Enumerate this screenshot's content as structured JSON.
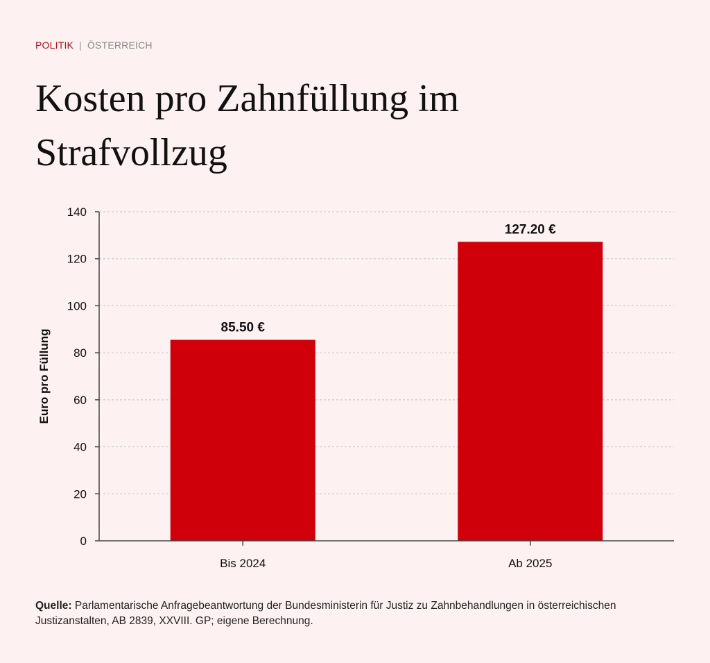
{
  "header": {
    "category": "POLITIK",
    "separator": "|",
    "subcategory": "ÖSTERREICH"
  },
  "title": "Kosten pro Zahnfüllung im Strafvollzug",
  "chart_data": {
    "type": "bar",
    "categories": [
      "Bis 2024",
      "Ab 2025"
    ],
    "values": [
      85.5,
      127.2
    ],
    "data_labels": [
      "85.50 €",
      "127.20 €"
    ],
    "ylabel": "Euro pro Füllung",
    "xlabel": "",
    "ylim": [
      0,
      140
    ],
    "yticks": [
      0,
      20,
      40,
      60,
      80,
      100,
      120,
      140
    ],
    "grid": true,
    "bar_color": "#d0000b"
  },
  "source": {
    "label": "Quelle:",
    "text": "Parlamentarische Anfragebeantwortung der Bundesministerin für Justiz zu Zahnbehandlungen in österreichischen Justizanstalten, AB 2839, XXVIII. GP; eigene Berechnung."
  }
}
